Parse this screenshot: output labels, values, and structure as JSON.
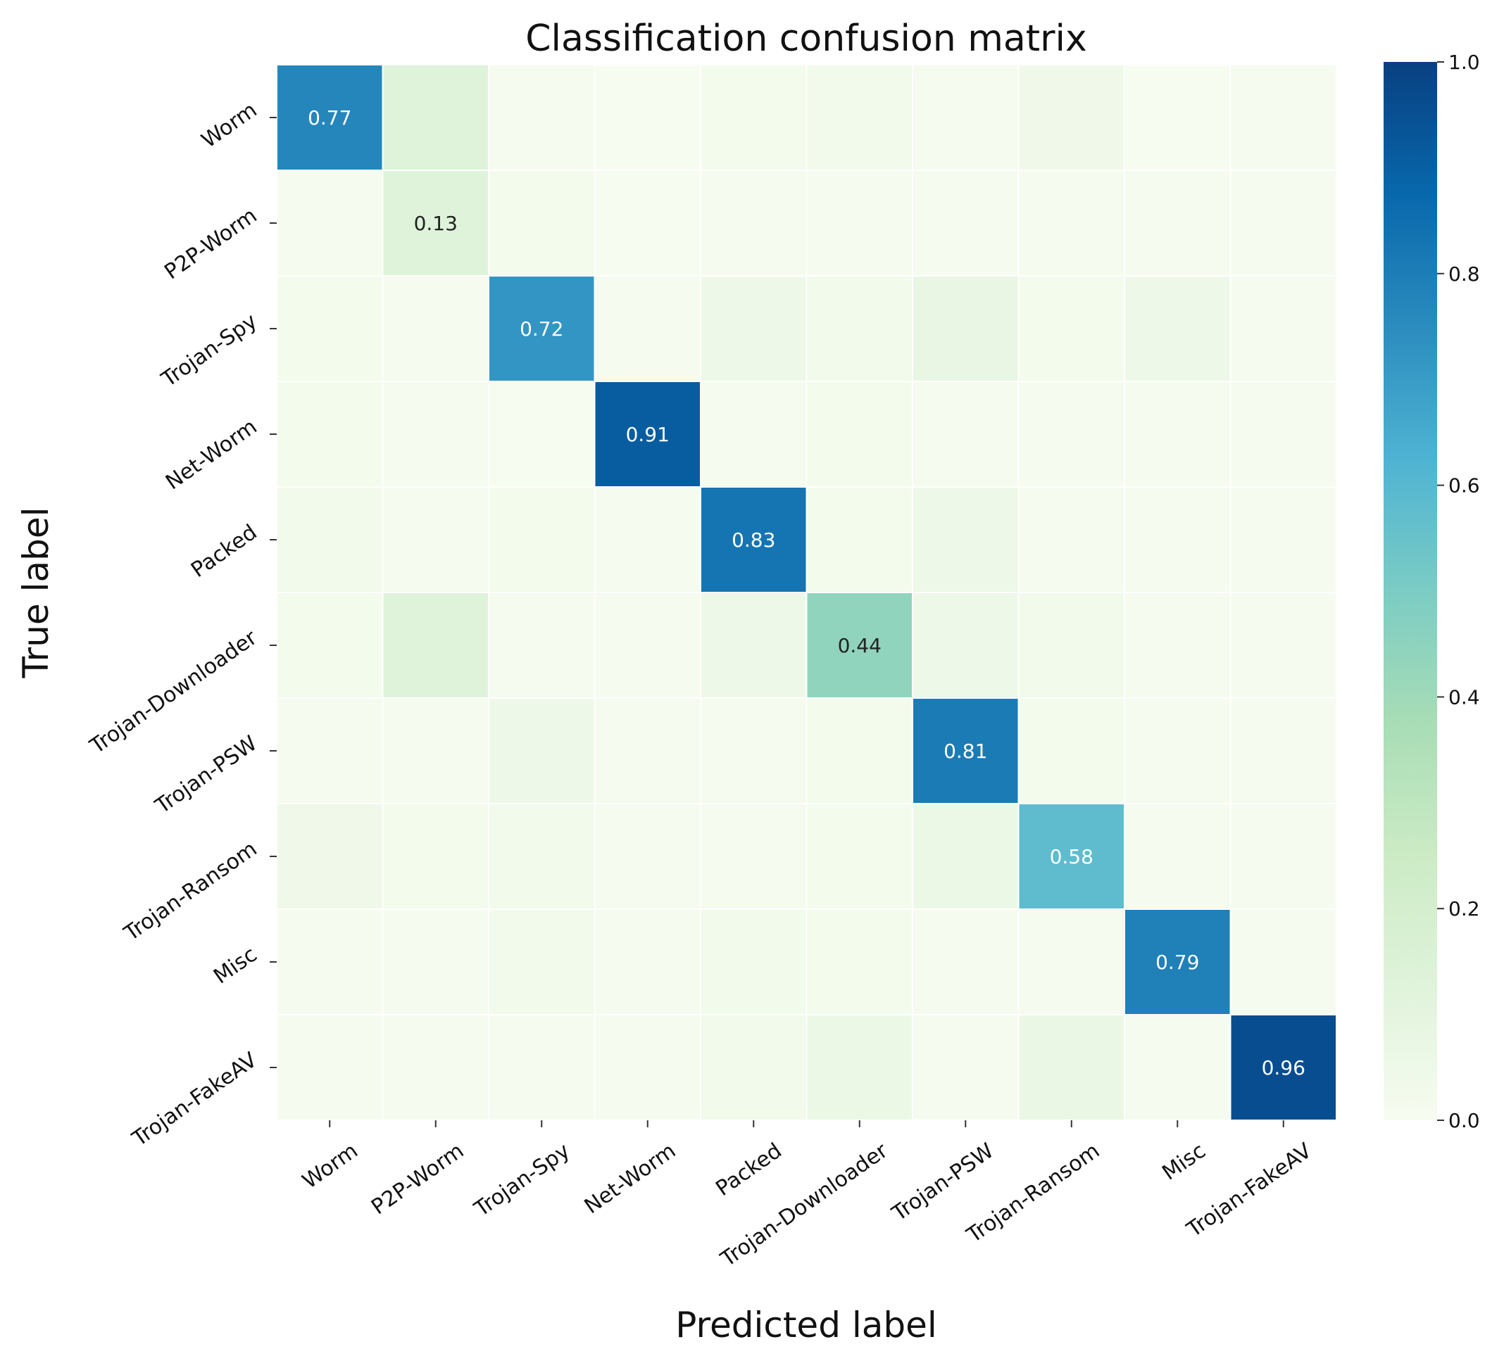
{
  "chart_data": {
    "type": "heatmap",
    "title": "Classification confusion matrix",
    "xlabel": "Predicted label",
    "ylabel": "True label",
    "labels": [
      "Worm",
      "P2P-Worm",
      "Trojan-Spy",
      "Net-Worm",
      "Packed",
      "Trojan-Downloader",
      "Trojan-PSW",
      "Trojan-Ransom",
      "Misc",
      "Trojan-FakeAV"
    ],
    "matrix": [
      [
        0.77,
        0.13,
        0.01,
        0.0,
        0.02,
        0.03,
        0.01,
        0.04,
        0.0,
        0.01
      ],
      [
        0.01,
        0.13,
        0.02,
        0.0,
        0.01,
        0.01,
        0.01,
        0.01,
        0.01,
        0.01
      ],
      [
        0.02,
        0.01,
        0.72,
        0.01,
        0.05,
        0.03,
        0.08,
        0.02,
        0.05,
        0.01
      ],
      [
        0.02,
        0.01,
        0.0,
        0.91,
        0.01,
        0.02,
        0.01,
        0.01,
        0.01,
        0.01
      ],
      [
        0.03,
        0.01,
        0.02,
        0.01,
        0.83,
        0.02,
        0.05,
        0.01,
        0.01,
        0.01
      ],
      [
        0.02,
        0.13,
        0.01,
        0.01,
        0.05,
        0.44,
        0.05,
        0.03,
        0.01,
        0.01
      ],
      [
        0.01,
        0.01,
        0.05,
        0.01,
        0.01,
        0.02,
        0.81,
        0.02,
        0.01,
        0.01
      ],
      [
        0.04,
        0.02,
        0.03,
        0.01,
        0.01,
        0.02,
        0.06,
        0.58,
        0.01,
        0.01
      ],
      [
        0.01,
        0.01,
        0.03,
        0.01,
        0.03,
        0.02,
        0.01,
        0.01,
        0.79,
        0.01
      ],
      [
        0.01,
        0.01,
        0.01,
        0.01,
        0.03,
        0.06,
        0.01,
        0.07,
        0.01,
        0.96
      ]
    ],
    "annotations": [
      {
        "row": 0,
        "col": 0,
        "text": "0.77"
      },
      {
        "row": 1,
        "col": 1,
        "text": "0.13"
      },
      {
        "row": 2,
        "col": 2,
        "text": "0.72"
      },
      {
        "row": 3,
        "col": 3,
        "text": "0.91"
      },
      {
        "row": 4,
        "col": 4,
        "text": "0.83"
      },
      {
        "row": 5,
        "col": 5,
        "text": "0.44"
      },
      {
        "row": 6,
        "col": 6,
        "text": "0.81"
      },
      {
        "row": 7,
        "col": 7,
        "text": "0.58"
      },
      {
        "row": 8,
        "col": 8,
        "text": "0.79"
      },
      {
        "row": 9,
        "col": 9,
        "text": "0.96"
      }
    ],
    "colorbar": {
      "range": [
        0.0,
        1.0
      ],
      "ticks": [
        "0.0",
        "0.2",
        "0.4",
        "0.6",
        "0.8",
        "1.0"
      ],
      "colormap": [
        "#f7fcf0",
        "#e0f3db",
        "#ccebc5",
        "#a8ddb5",
        "#7bccc4",
        "#4eb3d3",
        "#2b8cbe",
        "#0868ac",
        "#084081"
      ]
    },
    "colors": {
      "grid_line": "#ffffff",
      "dark_text": "#222222",
      "light_text": "#ffffff"
    }
  }
}
